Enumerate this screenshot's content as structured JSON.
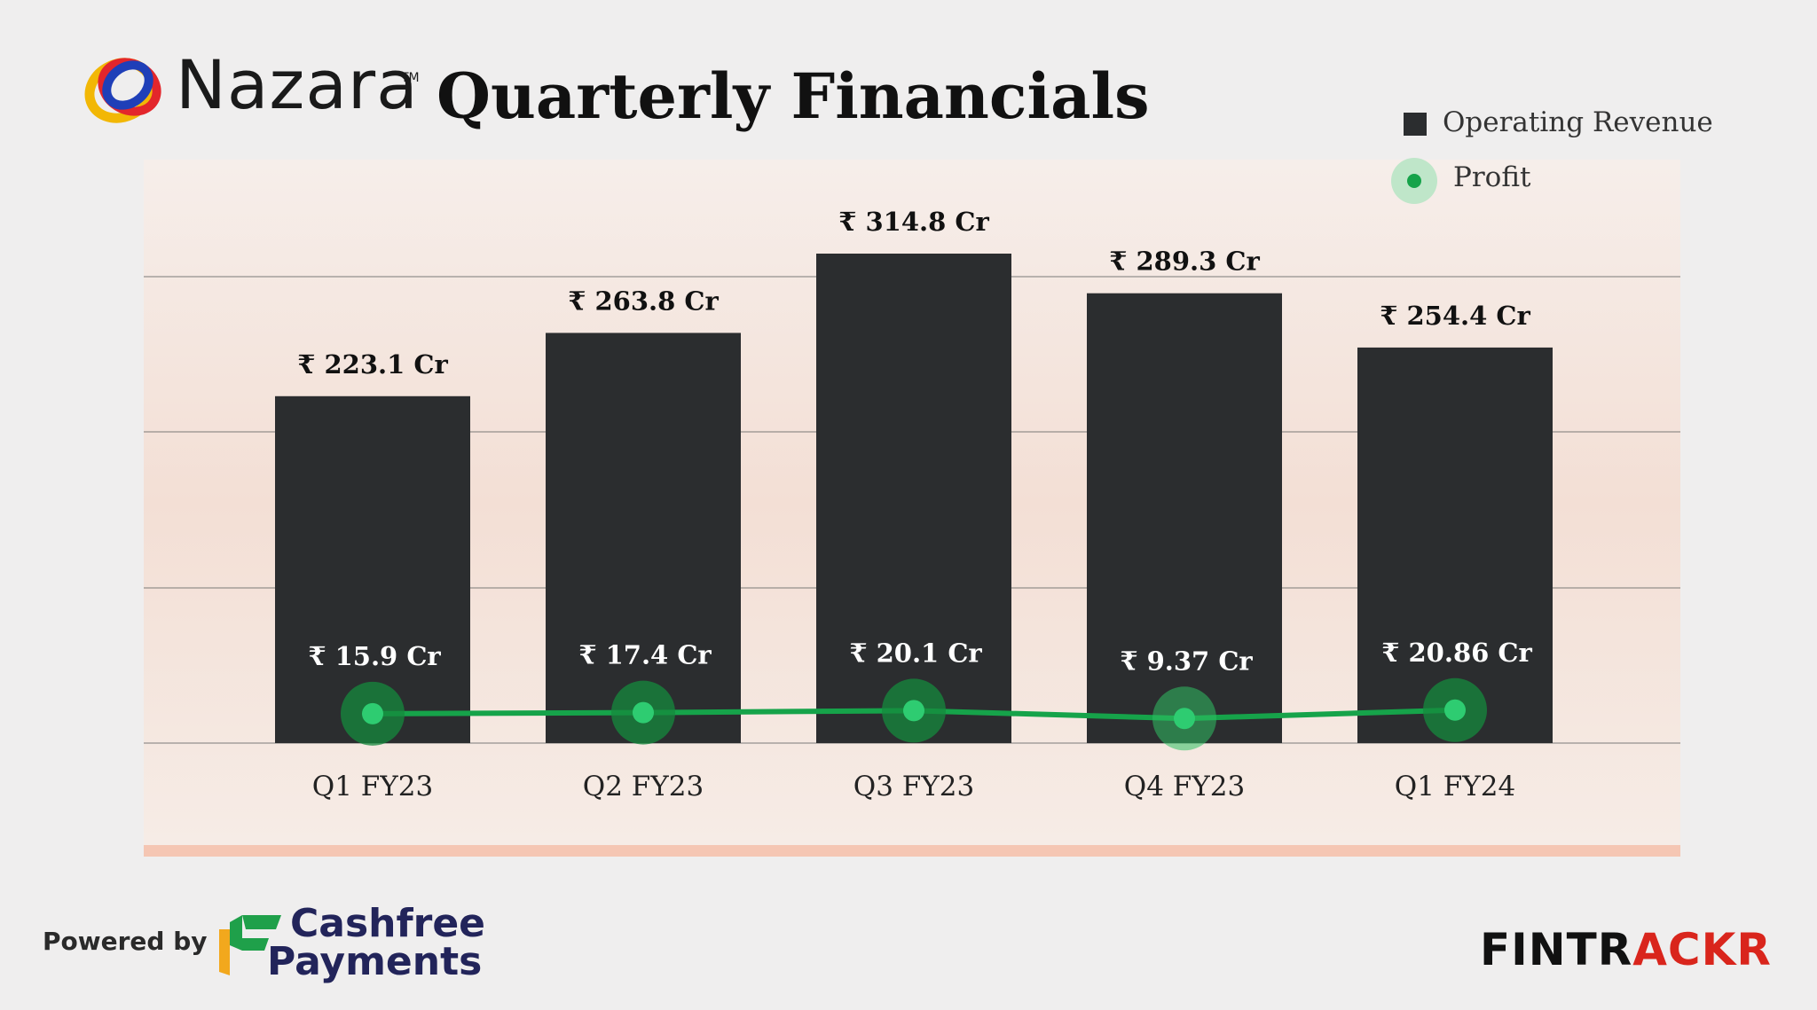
{
  "header": {
    "brand": "Nazara",
    "brand_mark": "TM",
    "title": "Quarterly Financials"
  },
  "legend": {
    "revenue_label": "Operating Revenue",
    "profit_label": "Profit"
  },
  "footer": {
    "powered_by": "Powered by",
    "sponsor_line1": "Cashfree",
    "sponsor_line2": "Payments",
    "publisher_part1": "FINTR",
    "publisher_part2": "ACKR"
  },
  "colors": {
    "bar": "#2b2d2f",
    "profit_line": "#16a34a",
    "profit_dot": "#2ecc71",
    "accent_strip": "#f5c6b3",
    "publisher_accent": "#d9251c"
  },
  "chart_data": {
    "type": "bar",
    "title": "Quarterly Financials",
    "categories": [
      "Q1 FY23",
      "Q2 FY23",
      "Q3 FY23",
      "Q4 FY23",
      "Q1 FY24"
    ],
    "series": [
      {
        "name": "Operating Revenue",
        "kind": "bar",
        "values": [
          223.1,
          263.8,
          314.8,
          289.3,
          254.4
        ],
        "labels": [
          "₹ 223.1 Cr",
          "₹ 263.8 Cr",
          "₹ 314.8 Cr",
          "₹ 289.3 Cr",
          "₹ 254.4 Cr"
        ]
      },
      {
        "name": "Profit",
        "kind": "line",
        "values": [
          15.9,
          17.4,
          20.1,
          9.37,
          20.86
        ],
        "labels": [
          "₹ 15.9 Cr",
          "₹ 17.4 Cr",
          "₹ 20.1 Cr",
          "₹ 9.37 Cr",
          "₹ 20.86 Cr"
        ]
      }
    ],
    "grid": true,
    "legend_position": "top-right"
  }
}
